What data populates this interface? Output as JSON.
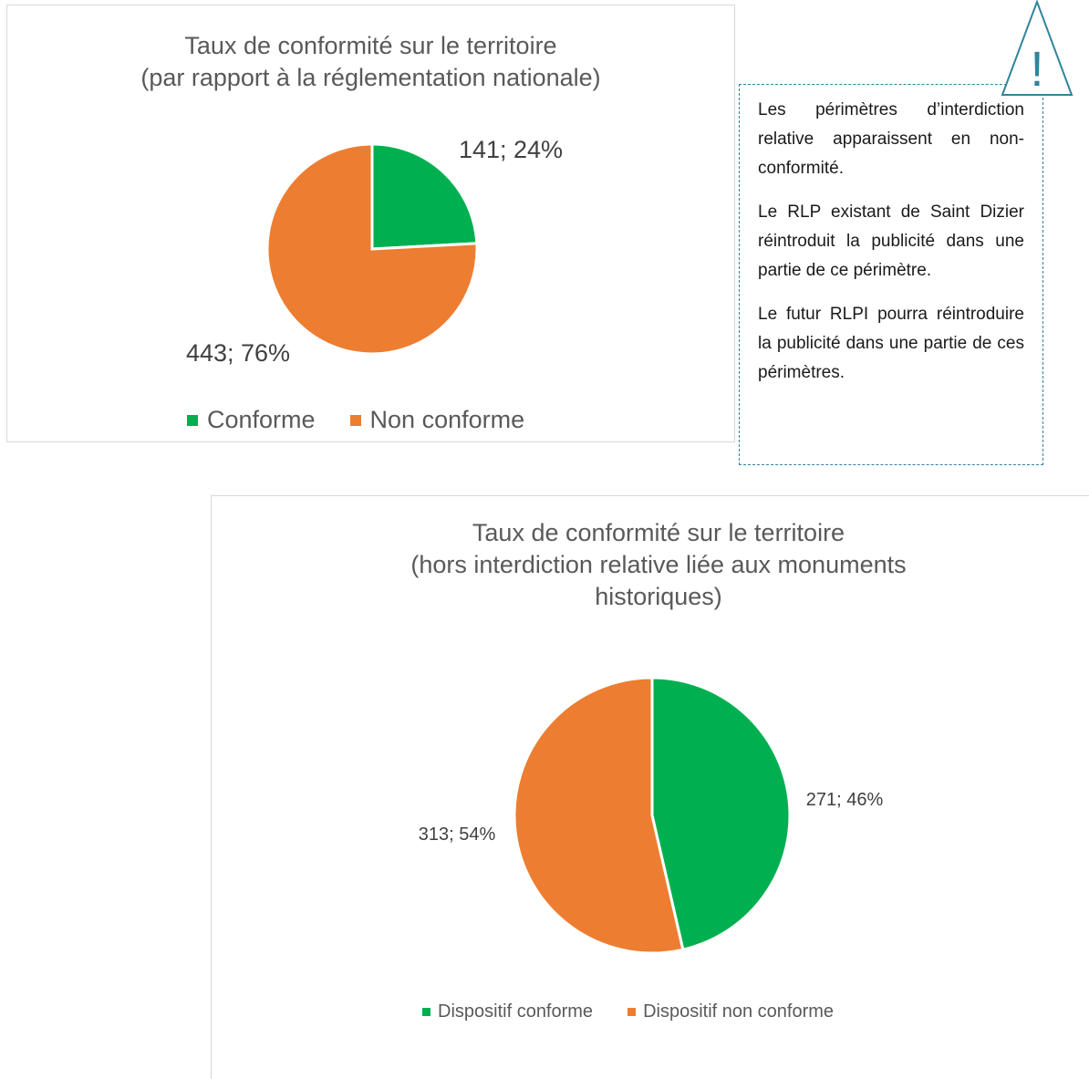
{
  "chart_data": [
    {
      "type": "pie",
      "title_line1": "Taux de conformité sur le territoire",
      "title_line2": "(par rapport à la réglementation nationale)",
      "categories": [
        "Conforme",
        "Non conforme"
      ],
      "values": [
        141,
        443
      ],
      "labels": [
        "141; 24%",
        "443; 76%"
      ],
      "colors": [
        "#00b050",
        "#ed7d31"
      ],
      "legend": "bottom"
    },
    {
      "type": "pie",
      "title_line1": "Taux de conformité sur le territoire",
      "title_line2": "(hors interdiction relative liée aux monuments",
      "title_line3": "historiques)",
      "categories": [
        "Dispositif conforme",
        "Dispositif non conforme"
      ],
      "values": [
        271,
        313
      ],
      "labels": [
        "271; 46%",
        "313; 54%"
      ],
      "colors": [
        "#00b050",
        "#ed7d31"
      ],
      "legend": "bottom"
    }
  ],
  "note": {
    "p1": "Les périmètres d’interdiction relative apparaissent en non-conformité.",
    "p2": "Le RLP existant de Saint Dizier réintroduit la publicité dans une partie de ce périmètre.",
    "p3": "Le futur RLPI pourra réintroduire la publicité dans une partie de ces périmètres.",
    "border_color": "#31849b"
  },
  "warning_icon": {
    "symbol": "!",
    "color": "#31849b",
    "name": "warning-icon"
  }
}
